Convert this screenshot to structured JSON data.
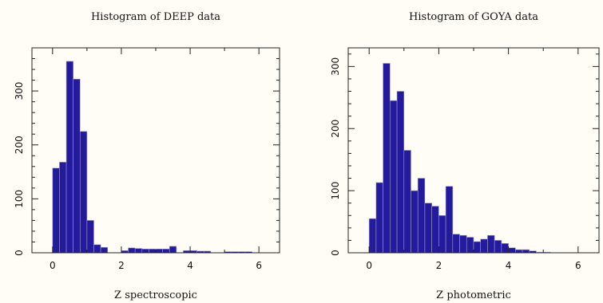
{
  "chart_data": [
    {
      "type": "bar",
      "title": "Histogram of DEEP data",
      "xlabel": "Z spectroscopic",
      "ylabel": "",
      "bin_width": 0.2,
      "bin_starts": [
        0.0,
        0.2,
        0.4,
        0.6,
        0.8,
        1.0,
        1.2,
        1.4,
        1.6,
        1.8,
        2.0,
        2.2,
        2.4,
        2.6,
        2.8,
        3.0,
        3.2,
        3.4,
        3.6,
        3.8,
        4.0,
        4.2,
        4.4,
        4.6,
        4.8,
        5.0,
        5.2,
        5.4,
        5.6,
        5.8
      ],
      "values": [
        157,
        168,
        355,
        322,
        225,
        60,
        15,
        10,
        0,
        0,
        4,
        9,
        8,
        7,
        7,
        7,
        7,
        12,
        0,
        4,
        4,
        3,
        3,
        0,
        0,
        2,
        2,
        2,
        2,
        0
      ],
      "xlim": [
        -0.6,
        6.6
      ],
      "ylim": [
        0,
        380
      ],
      "xticks": [
        0,
        2,
        4,
        6
      ],
      "yticks": [
        0,
        100,
        200,
        300
      ],
      "color": "#241a9c",
      "grid": false
    },
    {
      "type": "bar",
      "title": "Histogram of GOYA data",
      "xlabel": "Z photometric",
      "ylabel": "",
      "bin_width": 0.2,
      "bin_starts": [
        0.0,
        0.2,
        0.4,
        0.6,
        0.8,
        1.0,
        1.2,
        1.4,
        1.6,
        1.8,
        2.0,
        2.2,
        2.4,
        2.6,
        2.8,
        3.0,
        3.2,
        3.4,
        3.6,
        3.8,
        4.0,
        4.2,
        4.4,
        4.6,
        4.8,
        5.0
      ],
      "values": [
        55,
        113,
        305,
        245,
        260,
        165,
        100,
        120,
        80,
        75,
        60,
        107,
        30,
        28,
        25,
        18,
        22,
        28,
        20,
        15,
        8,
        5,
        5,
        3,
        1,
        1
      ],
      "xlim": [
        -0.6,
        6.6
      ],
      "ylim": [
        0,
        330
      ],
      "xticks": [
        0,
        2,
        4,
        6
      ],
      "yticks": [
        0,
        100,
        200,
        300
      ],
      "color": "#241a9c",
      "grid": false
    }
  ]
}
